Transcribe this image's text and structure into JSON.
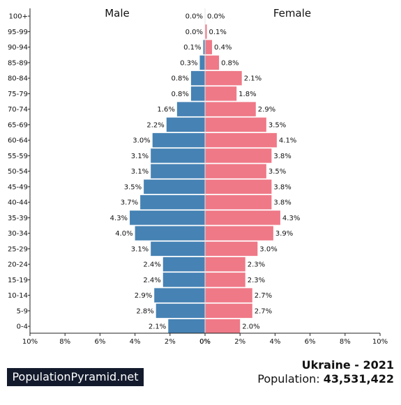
{
  "chart_data": {
    "type": "bar",
    "orientation": "horizontal-population-pyramid",
    "categories": [
      "100+",
      "95-99",
      "90-94",
      "85-89",
      "80-84",
      "75-79",
      "70-74",
      "65-69",
      "60-64",
      "55-59",
      "50-54",
      "45-49",
      "40-44",
      "35-39",
      "30-34",
      "25-29",
      "20-24",
      "15-19",
      "10-14",
      "5-9",
      "0-4"
    ],
    "series": [
      {
        "name": "Male",
        "color": "#4682b4",
        "values": [
          0.0,
          0.0,
          0.1,
          0.3,
          0.8,
          0.8,
          1.6,
          2.2,
          3.0,
          3.1,
          3.1,
          3.5,
          3.7,
          4.3,
          4.0,
          3.1,
          2.4,
          2.4,
          2.9,
          2.8,
          2.1
        ],
        "labels": [
          "0.0%",
          "0.0%",
          "0.1%",
          "0.3%",
          "0.8%",
          "0.8%",
          "1.6%",
          "2.2%",
          "3.0%",
          "3.1%",
          "3.1%",
          "3.5%",
          "3.7%",
          "4.3%",
          "4.0%",
          "3.1%",
          "2.4%",
          "2.4%",
          "2.9%",
          "2.8%",
          "2.1%"
        ]
      },
      {
        "name": "Female",
        "color": "#ef7987",
        "values": [
          0.0,
          0.1,
          0.4,
          0.8,
          2.1,
          1.8,
          2.9,
          3.5,
          4.1,
          3.8,
          3.5,
          3.8,
          3.8,
          4.3,
          3.9,
          3.0,
          2.3,
          2.3,
          2.7,
          2.7,
          2.0
        ],
        "labels": [
          "0.0%",
          "0.1%",
          "0.4%",
          "0.8%",
          "2.1%",
          "1.8%",
          "2.9%",
          "3.5%",
          "4.1%",
          "3.8%",
          "3.5%",
          "3.8%",
          "3.8%",
          "4.3%",
          "3.9%",
          "3.0%",
          "2.3%",
          "2.3%",
          "2.7%",
          "2.7%",
          "2.0%"
        ]
      }
    ],
    "xlim": [
      0,
      10
    ],
    "x_ticks_left": [
      "10%",
      "8%",
      "6%",
      "4%",
      "2%",
      "0%"
    ],
    "x_ticks_right": [
      "0%",
      "2%",
      "4%",
      "6%",
      "8%",
      "10%"
    ],
    "grid": false,
    "legend": "series names printed above each half"
  },
  "footer": {
    "brand": "PopulationPyramid.net",
    "country_year": "Ukraine - 2021",
    "population_label": "Population: ",
    "population_value": "43,531,422"
  }
}
